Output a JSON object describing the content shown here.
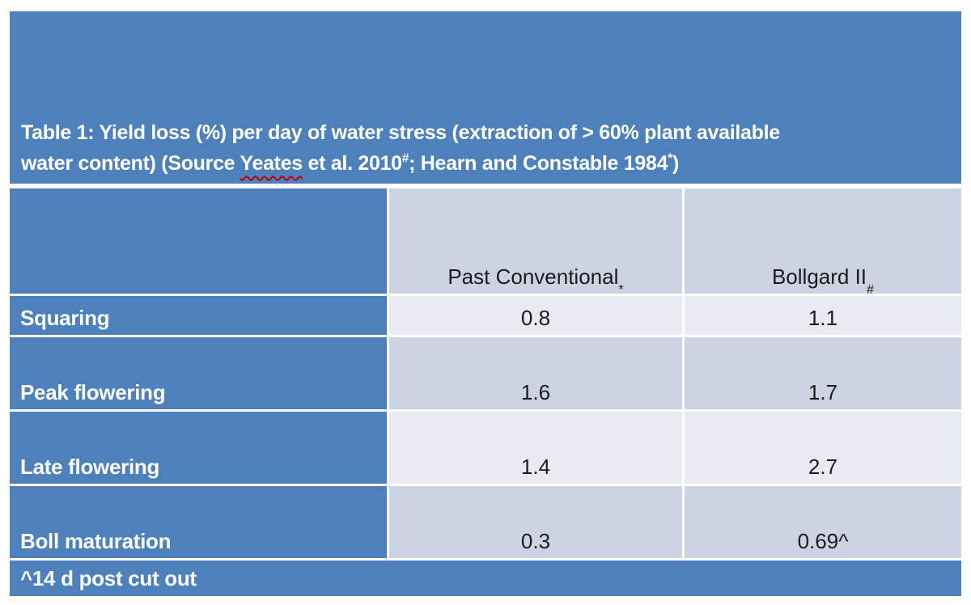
{
  "colors": {
    "accent_blue": "#4E80BC",
    "band_medium": "#CCD4E3",
    "band_light": "#E9EBF2",
    "text_dark": "#1b1b1b",
    "text_light": "#ffffff",
    "spellcheck_red": "#C00000"
  },
  "title": {
    "line1": "Table 1: Yield loss (%) per day of water stress (extraction of > 60% plant available",
    "line2_prefix": "water content) (Source ",
    "line2_flagged_word": "Yeates",
    "line2_mid": " et al. 2010",
    "line2_sup1": "#",
    "line2_after_sup1": "; Hearn and Constable 1984",
    "line2_sup2": "*",
    "line2_suffix": ")"
  },
  "table": {
    "columns": [
      {
        "label": ""
      },
      {
        "label": "Past Conventional",
        "superscript": "*"
      },
      {
        "label": "Bollgard II",
        "superscript": "#"
      }
    ],
    "rows": [
      {
        "label": "Squaring",
        "past_conventional": "0.8",
        "bollgard_ii": "1.1"
      },
      {
        "label": "Peak flowering",
        "past_conventional": "1.6",
        "bollgard_ii": "1.7"
      },
      {
        "label": "Late flowering",
        "past_conventional": "1.4",
        "bollgard_ii": "2.7"
      },
      {
        "label": "Boll maturation",
        "past_conventional": "0.3",
        "bollgard_ii": "0.69^"
      }
    ],
    "footnote": "^14 d post cut out"
  },
  "chart_data": {
    "type": "table",
    "title": "Table 1: Yield loss (%) per day of water stress (extraction of > 60% plant available water content) (Source Yeates et al. 2010#; Hearn and Constable 1984*)",
    "columns": [
      "",
      "Past Conventional*",
      "Bollgard II#"
    ],
    "rows": [
      [
        "Squaring",
        0.8,
        1.1
      ],
      [
        "Peak flowering",
        1.6,
        1.7
      ],
      [
        "Late flowering",
        1.4,
        2.7
      ],
      [
        "Boll maturation",
        0.3,
        "0.69^"
      ]
    ],
    "footnote": "^14 d post cut out"
  }
}
